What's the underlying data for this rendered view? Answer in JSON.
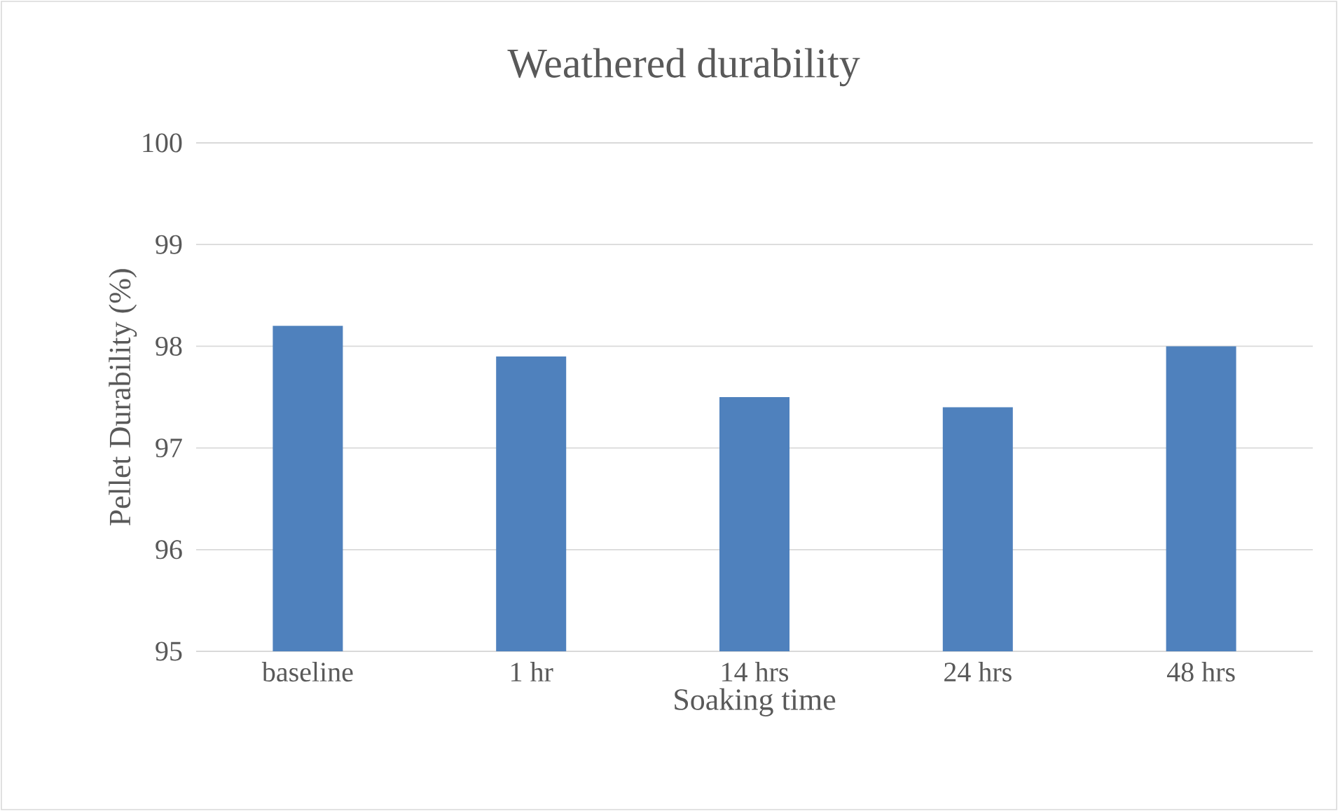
{
  "chart_data": {
    "type": "bar",
    "title": "Weathered durability",
    "xlabel": "Soaking time",
    "ylabel": "Pellet Durability (%)",
    "categories": [
      "baseline",
      "1 hr",
      "14 hrs",
      "24 hrs",
      "48 hrs"
    ],
    "values": [
      98.2,
      97.9,
      97.5,
      97.4,
      98.0
    ],
    "color": "#4f81bd",
    "ylim": [
      95,
      100
    ],
    "yticks": [
      95,
      96,
      97,
      98,
      99,
      100
    ],
    "grid": "y"
  }
}
